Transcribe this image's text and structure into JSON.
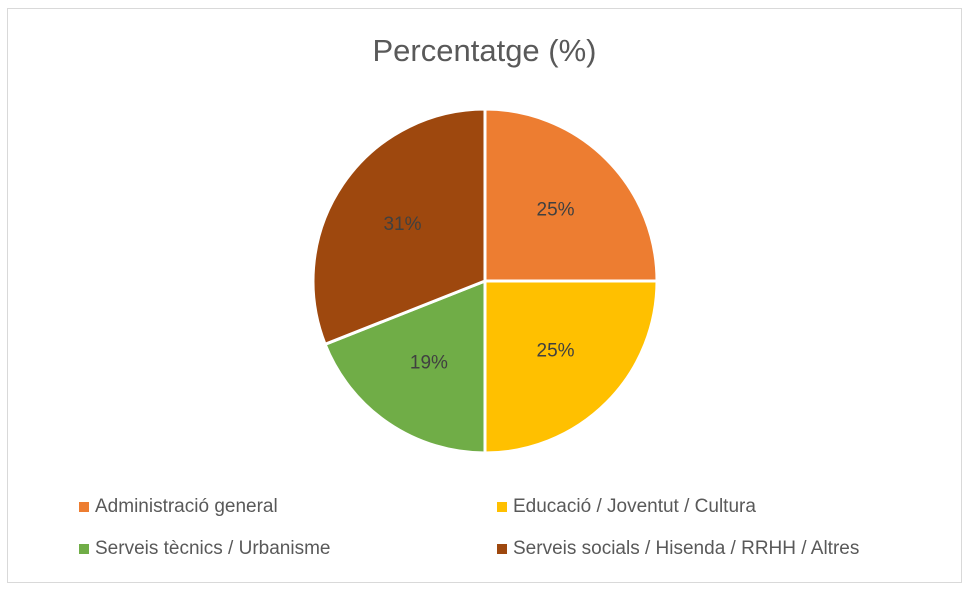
{
  "chart_data": {
    "type": "pie",
    "title": "Percentatge (%)",
    "categories": [
      "Administració general",
      "Educació / Joventut / Cultura",
      "Serveis tècnics / Urbanisme",
      "Serveis socials / Hisenda / RRHH / Altres"
    ],
    "values": [
      25,
      25,
      19,
      31
    ],
    "labels": [
      "25%",
      "25%",
      "19%",
      "31%"
    ],
    "colors": [
      "#ED7D31",
      "#FFC000",
      "#70AD47",
      "#9E480E"
    ],
    "legend_position": "bottom"
  }
}
